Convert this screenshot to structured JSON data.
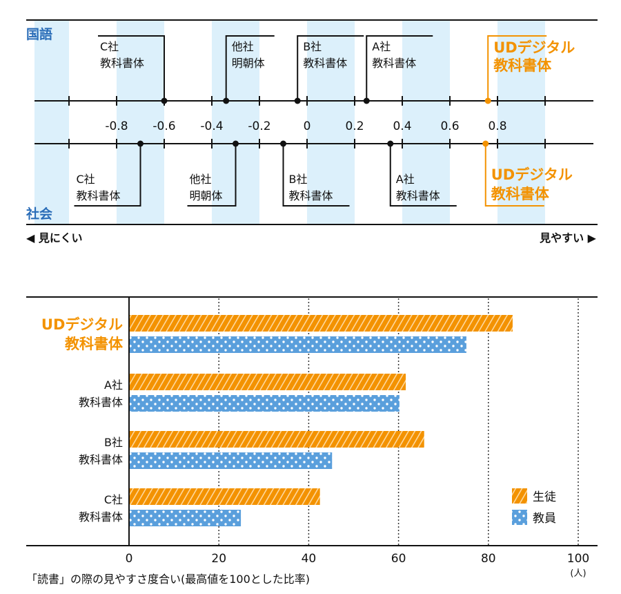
{
  "colors": {
    "orange": "#f39200",
    "blue": "#5a9fdc",
    "band": "#dcf0fb",
    "section_label": "#2a6db8",
    "ink": "#1a1a1a"
  },
  "chart_data": [
    {
      "type": "scatter",
      "axis": {
        "range": [
          -1.0,
          1.0
        ],
        "tick_step": 0.2,
        "tick_labels": [
          "-0.8",
          "-0.6",
          "-0.4",
          "-0.2",
          "0",
          "0.2",
          "0.4",
          "0.6",
          "0.8"
        ]
      },
      "left_label": "◀ 見にくい",
      "right_label": "見やすい ▶",
      "rows": [
        {
          "name": "国語",
          "points": [
            {
              "label": [
                "C社",
                "教科書体"
              ],
              "value": -0.6
            },
            {
              "label": [
                "他社",
                "明朝体"
              ],
              "value": -0.34
            },
            {
              "label": [
                "B社",
                "教科書体"
              ],
              "value": -0.04
            },
            {
              "label": [
                "A社",
                "教科書体"
              ],
              "value": 0.25
            },
            {
              "label": [
                "UDデジタル",
                "教科書体"
              ],
              "value": 0.76,
              "highlight": true
            }
          ]
        },
        {
          "name": "社会",
          "points": [
            {
              "label": [
                "C社",
                "教科書体"
              ],
              "value": -0.7
            },
            {
              "label": [
                "他社",
                "明朝体"
              ],
              "value": -0.3
            },
            {
              "label": [
                "B社",
                "教科書体"
              ],
              "value": -0.1
            },
            {
              "label": [
                "A社",
                "教科書体"
              ],
              "value": 0.35
            },
            {
              "label": [
                "UDデジタル",
                "教科書体"
              ],
              "value": 0.75,
              "highlight": true
            }
          ]
        }
      ]
    },
    {
      "type": "bar",
      "orientation": "horizontal",
      "categories": [
        [
          "UDデジタル",
          "教科書体"
        ],
        [
          "A社",
          "教科書体"
        ],
        [
          "B社",
          "教科書体"
        ],
        [
          "C社",
          "教科書体"
        ]
      ],
      "series": [
        {
          "name": "生徒",
          "values": [
            85.4,
            61.6,
            65.7,
            42.5
          ],
          "color": "#f39200",
          "pattern": "diagonal-stripes"
        },
        {
          "name": "教員",
          "values": [
            75.1,
            60.2,
            45.2,
            24.9
          ],
          "color": "#5a9fdc",
          "pattern": "dots"
        }
      ],
      "xlim": [
        0,
        100
      ],
      "tick_labels": [
        "0",
        "20",
        "40",
        "60",
        "80",
        "100"
      ],
      "unit": "(人)",
      "xlabel": "「読書」の際の見やすさ度合い(最高値を100とした比率)",
      "grid": "vertical dotted",
      "legend": "bottom-right"
    }
  ]
}
